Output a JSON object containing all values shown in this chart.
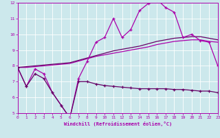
{
  "xlabel": "Windchill (Refroidissement éolien,°C)",
  "xlim": [
    0,
    23
  ],
  "ylim": [
    5,
    12
  ],
  "yticks": [
    5,
    6,
    7,
    8,
    9,
    10,
    11,
    12
  ],
  "xticks": [
    0,
    1,
    2,
    3,
    4,
    5,
    6,
    7,
    8,
    9,
    10,
    11,
    12,
    13,
    14,
    15,
    16,
    17,
    18,
    19,
    20,
    21,
    22,
    23
  ],
  "bg_color": "#cce8ec",
  "line_color1": "#aa00aa",
  "line_color2": "#660066",
  "grid_color": "#ffffff",
  "spine_color": "#7700aa",
  "line1_x": [
    0,
    1,
    2,
    3,
    4,
    5,
    6,
    7,
    8,
    9,
    10,
    11,
    12,
    13,
    14,
    15,
    16,
    17,
    18,
    19,
    20,
    21,
    22,
    23
  ],
  "line1_y": [
    7.9,
    6.7,
    7.8,
    7.5,
    6.3,
    5.5,
    4.7,
    7.2,
    8.3,
    9.5,
    9.8,
    11.0,
    9.8,
    10.3,
    11.5,
    11.95,
    12.2,
    11.7,
    11.4,
    9.8,
    10.0,
    9.6,
    9.5,
    8.0
  ],
  "line2_x": [
    0,
    1,
    2,
    3,
    4,
    5,
    6,
    7,
    8,
    9,
    10,
    11,
    12,
    13,
    14,
    15,
    16,
    17,
    18,
    19,
    20,
    21,
    22,
    23
  ],
  "line2_y": [
    7.9,
    6.7,
    7.5,
    7.2,
    6.3,
    5.5,
    4.7,
    7.0,
    7.0,
    6.85,
    6.75,
    6.7,
    6.65,
    6.6,
    6.55,
    6.55,
    6.55,
    6.55,
    6.5,
    6.5,
    6.45,
    6.4,
    6.4,
    6.3
  ],
  "line3_x": [
    0,
    1,
    2,
    3,
    4,
    5,
    6,
    7,
    8,
    9,
    10,
    11,
    12,
    13,
    14,
    15,
    16,
    17,
    18,
    19,
    20,
    21,
    22,
    23
  ],
  "line3_y": [
    7.9,
    7.9,
    7.95,
    8.0,
    8.05,
    8.1,
    8.15,
    8.3,
    8.45,
    8.6,
    8.7,
    8.8,
    8.9,
    9.0,
    9.1,
    9.2,
    9.35,
    9.45,
    9.55,
    9.6,
    9.65,
    9.65,
    9.55,
    9.5
  ],
  "line4_x": [
    0,
    1,
    2,
    3,
    4,
    5,
    6,
    7,
    8,
    9,
    10,
    11,
    12,
    13,
    14,
    15,
    16,
    17,
    18,
    19,
    20,
    21,
    22,
    23
  ],
  "line4_y": [
    7.9,
    7.95,
    8.0,
    8.05,
    8.1,
    8.15,
    8.2,
    8.35,
    8.5,
    8.65,
    8.8,
    8.95,
    9.05,
    9.15,
    9.25,
    9.4,
    9.55,
    9.65,
    9.75,
    9.8,
    9.85,
    9.85,
    9.75,
    9.65
  ]
}
